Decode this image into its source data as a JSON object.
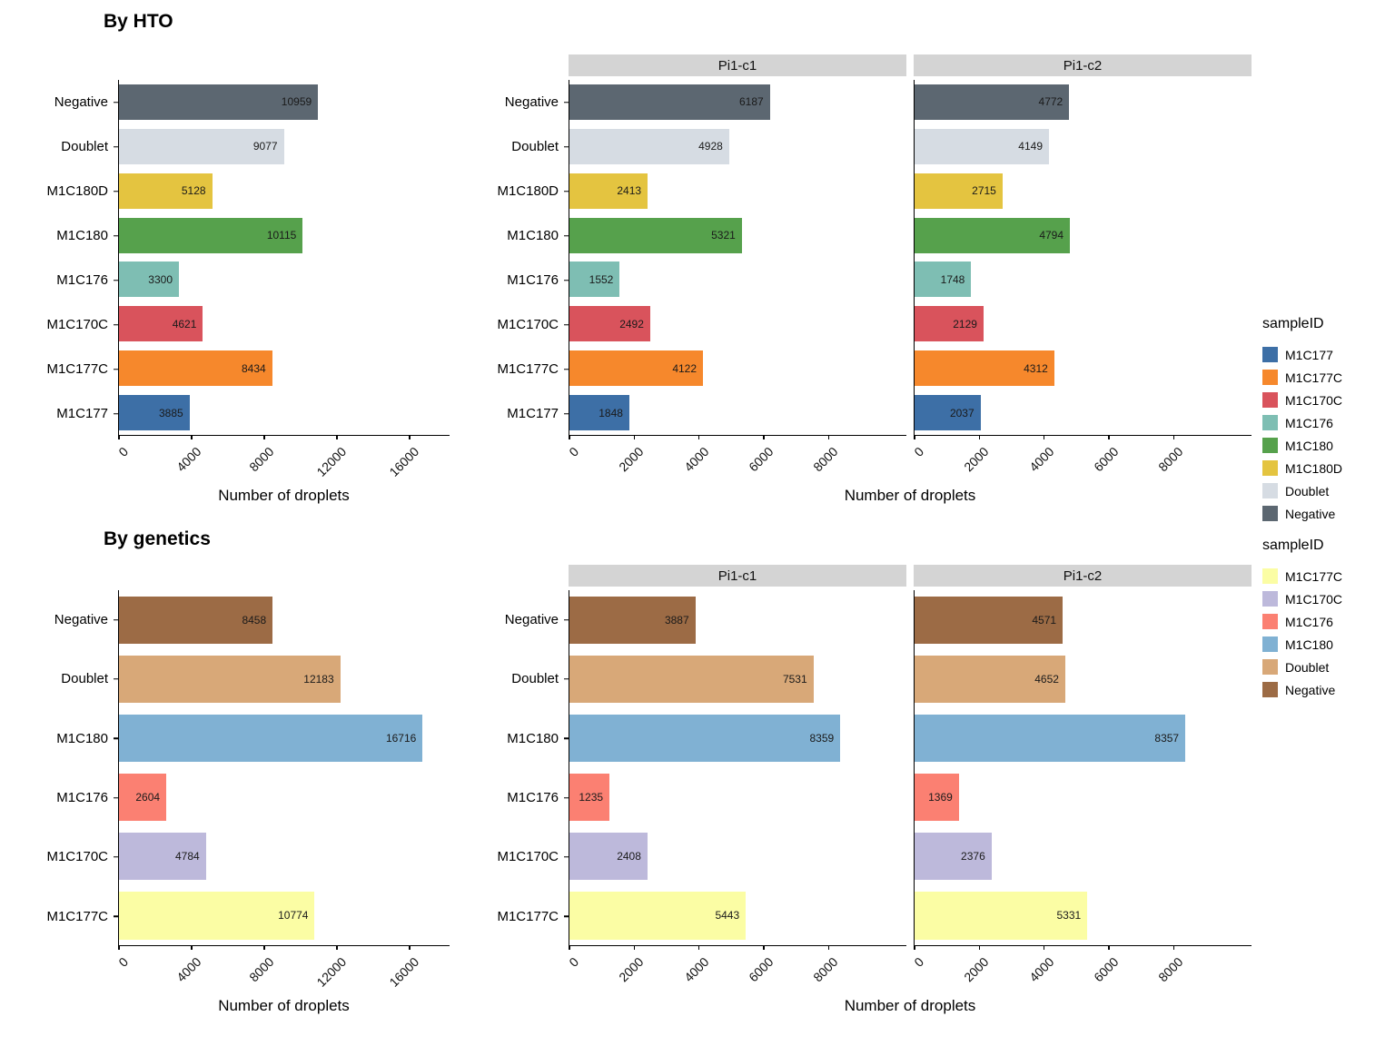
{
  "chart_data": [
    {
      "type": "bar",
      "orientation": "horizontal",
      "title": "By HTO",
      "xlabel": "Number of droplets",
      "categories_top_to_bottom": [
        "Negative",
        "Doublet",
        "M1C180D",
        "M1C180",
        "M1C176",
        "M1C170C",
        "M1C177C",
        "M1C177"
      ],
      "colors": {
        "M1C177": "#3D6FA6",
        "M1C177C": "#F6882C",
        "M1C170C": "#D9535C",
        "M1C176": "#7EBEB3",
        "M1C180": "#56A14C",
        "M1C180D": "#E4C440",
        "Doublet": "#D6DCE3",
        "Negative": "#5C6771"
      },
      "panels": [
        {
          "name": "",
          "xlim": [
            0,
            18200
          ],
          "xticks": [
            0,
            4000,
            8000,
            12000,
            16000
          ],
          "values": [
            10959,
            9077,
            5128,
            10115,
            3300,
            4621,
            8434,
            3885
          ]
        },
        {
          "name": "Pi1-c1",
          "xlim": [
            0,
            10400
          ],
          "xticks": [
            0,
            2000,
            4000,
            6000,
            8000
          ],
          "values": [
            6187,
            4928,
            2413,
            5321,
            1552,
            2492,
            4122,
            1848
          ]
        },
        {
          "name": "Pi1-c2",
          "xlim": [
            0,
            10400
          ],
          "xticks": [
            0,
            2000,
            4000,
            6000,
            8000
          ],
          "values": [
            4772,
            4149,
            2715,
            4794,
            1748,
            2129,
            4312,
            2037
          ]
        }
      ],
      "legend": {
        "title": "sampleID",
        "items": [
          "M1C177",
          "M1C177C",
          "M1C170C",
          "M1C176",
          "M1C180",
          "M1C180D",
          "Doublet",
          "Negative"
        ]
      }
    },
    {
      "type": "bar",
      "orientation": "horizontal",
      "title": "By genetics",
      "xlabel": "Number of droplets",
      "categories_top_to_bottom": [
        "Negative",
        "Doublet",
        "M1C180",
        "M1C176",
        "M1C170C",
        "M1C177C"
      ],
      "colors": {
        "M1C177C": "#FBFDA4",
        "M1C170C": "#BDB9DB",
        "M1C176": "#FB8072",
        "M1C180": "#80B1D3",
        "Doublet": "#D8A878",
        "Negative": "#9C6B45"
      },
      "panels": [
        {
          "name": "",
          "xlim": [
            0,
            18200
          ],
          "xticks": [
            0,
            4000,
            8000,
            12000,
            16000
          ],
          "values": [
            8458,
            12183,
            16716,
            2604,
            4784,
            10774
          ]
        },
        {
          "name": "Pi1-c1",
          "xlim": [
            0,
            10400
          ],
          "xticks": [
            0,
            2000,
            4000,
            6000,
            8000
          ],
          "values": [
            3887,
            7531,
            8359,
            1235,
            2408,
            5443
          ]
        },
        {
          "name": "Pi1-c2",
          "xlim": [
            0,
            10400
          ],
          "xticks": [
            0,
            2000,
            4000,
            6000,
            8000
          ],
          "values": [
            4571,
            4652,
            8357,
            1369,
            2376,
            5331
          ]
        }
      ],
      "legend": {
        "title": "sampleID",
        "items": [
          "M1C177C",
          "M1C170C",
          "M1C176",
          "M1C180",
          "Doublet",
          "Negative"
        ]
      }
    }
  ]
}
